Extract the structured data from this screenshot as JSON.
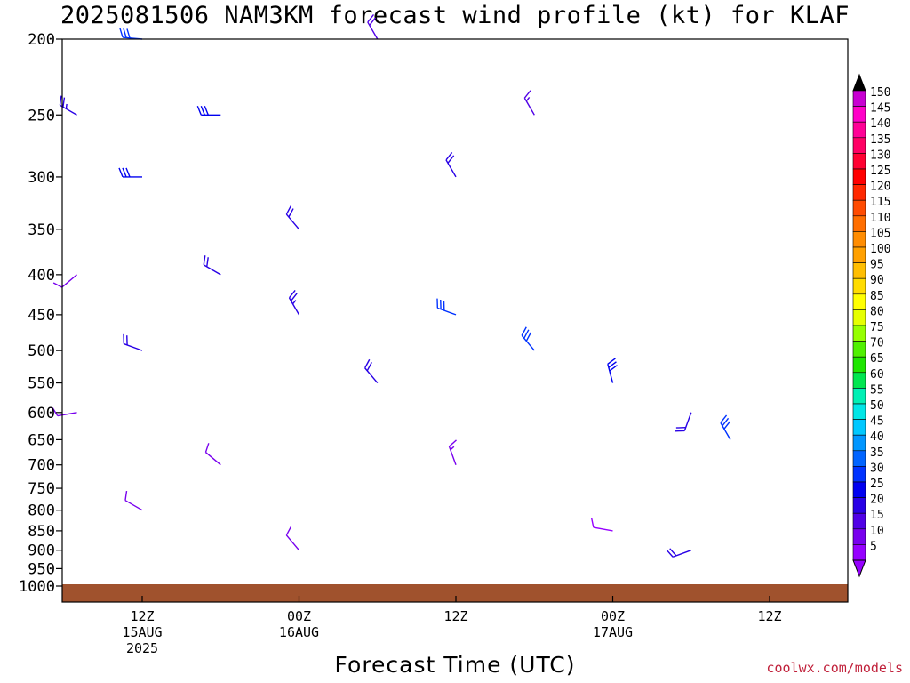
{
  "title": "2025081506 NAM3KM forecast wind profile (kt) for KLAF",
  "credit": "coolwx.com/models",
  "chart_data": {
    "type": "wind-barb-profile",
    "title": "2025081506 NAM3KM forecast wind profile (kt) for KLAF",
    "xlabel": "Forecast Time (UTC)",
    "ylabel": "",
    "y_scale": "log-pressure",
    "ylim": [
      1000,
      200
    ],
    "y_ticks": [
      200,
      250,
      300,
      350,
      400,
      450,
      500,
      550,
      600,
      650,
      700,
      750,
      800,
      850,
      900,
      950,
      1000
    ],
    "x_range_hours": [
      6,
      57
    ],
    "x_ticks": [
      {
        "hour": 12,
        "lines": [
          "12Z",
          "15AUG",
          "2025"
        ]
      },
      {
        "hour": 24,
        "lines": [
          "00Z",
          "16AUG"
        ]
      },
      {
        "hour": 36,
        "lines": [
          "12Z"
        ]
      },
      {
        "hour": 48,
        "lines": [
          "00Z",
          "17AUG"
        ]
      },
      {
        "hour": 60,
        "lines": [
          "12Z"
        ]
      }
    ],
    "colorbar": {
      "units": "kt",
      "labels": [
        150,
        145,
        140,
        135,
        130,
        125,
        120,
        115,
        110,
        105,
        100,
        95,
        90,
        85,
        80,
        75,
        70,
        65,
        60,
        55,
        50,
        45,
        40,
        35,
        30,
        25,
        20,
        15,
        10,
        5
      ],
      "colors": [
        "#c800d2",
        "#ff00c8",
        "#ff0096",
        "#ff0064",
        "#ff0032",
        "#ff0000",
        "#ff2800",
        "#ff4b00",
        "#ff6e00",
        "#ff8c00",
        "#ffa000",
        "#ffbe00",
        "#ffdc00",
        "#ffff00",
        "#e6ff00",
        "#96ff00",
        "#50f000",
        "#1ee600",
        "#00e650",
        "#00f0b4",
        "#00e6e6",
        "#00c8ff",
        "#0096ff",
        "#0064ff",
        "#0032ff",
        "#0000f0",
        "#2800e6",
        "#5000e6",
        "#7800ee",
        "#9600ff"
      ]
    },
    "surface_color": "#a0522d",
    "series": [
      {
        "hour": 7,
        "p": 250,
        "speed": 24,
        "dir": 300
      },
      {
        "hour": 7,
        "p": 400,
        "speed": 12,
        "dir": 230
      },
      {
        "hour": 7,
        "p": 600,
        "speed": 12,
        "dir": 260
      },
      {
        "hour": 12,
        "p": 200,
        "speed": 32,
        "dir": 275
      },
      {
        "hour": 12,
        "p": 300,
        "speed": 28,
        "dir": 270
      },
      {
        "hour": 12,
        "p": 500,
        "speed": 20,
        "dir": 290
      },
      {
        "hour": 12,
        "p": 800,
        "speed": 12,
        "dir": 300
      },
      {
        "hour": 18,
        "p": 250,
        "speed": 28,
        "dir": 270
      },
      {
        "hour": 18,
        "p": 400,
        "speed": 22,
        "dir": 300
      },
      {
        "hour": 18,
        "p": 700,
        "speed": 12,
        "dir": 310
      },
      {
        "hour": 24,
        "p": 350,
        "speed": 20,
        "dir": 320
      },
      {
        "hour": 24,
        "p": 450,
        "speed": 24,
        "dir": 330
      },
      {
        "hour": 24,
        "p": 900,
        "speed": 10,
        "dir": 320
      },
      {
        "hour": 30,
        "p": 200,
        "speed": 18,
        "dir": 330
      },
      {
        "hour": 30,
        "p": 550,
        "speed": 20,
        "dir": 320
      },
      {
        "hour": 36,
        "p": 300,
        "speed": 20,
        "dir": 330
      },
      {
        "hour": 36,
        "p": 450,
        "speed": 32,
        "dir": 290
      },
      {
        "hour": 36,
        "p": 700,
        "speed": 14,
        "dir": 340
      },
      {
        "hour": 42,
        "p": 250,
        "speed": 16,
        "dir": 330
      },
      {
        "hour": 42,
        "p": 500,
        "speed": 30,
        "dir": 320
      },
      {
        "hour": 48,
        "p": 550,
        "speed": 28,
        "dir": 345
      },
      {
        "hour": 48,
        "p": 850,
        "speed": 8,
        "dir": 280
      },
      {
        "hour": 54,
        "p": 600,
        "speed": 20,
        "dir": 200
      },
      {
        "hour": 54,
        "p": 900,
        "speed": 22,
        "dir": 250
      },
      {
        "hour": 57,
        "p": 650,
        "speed": 30,
        "dir": 330
      }
    ]
  }
}
